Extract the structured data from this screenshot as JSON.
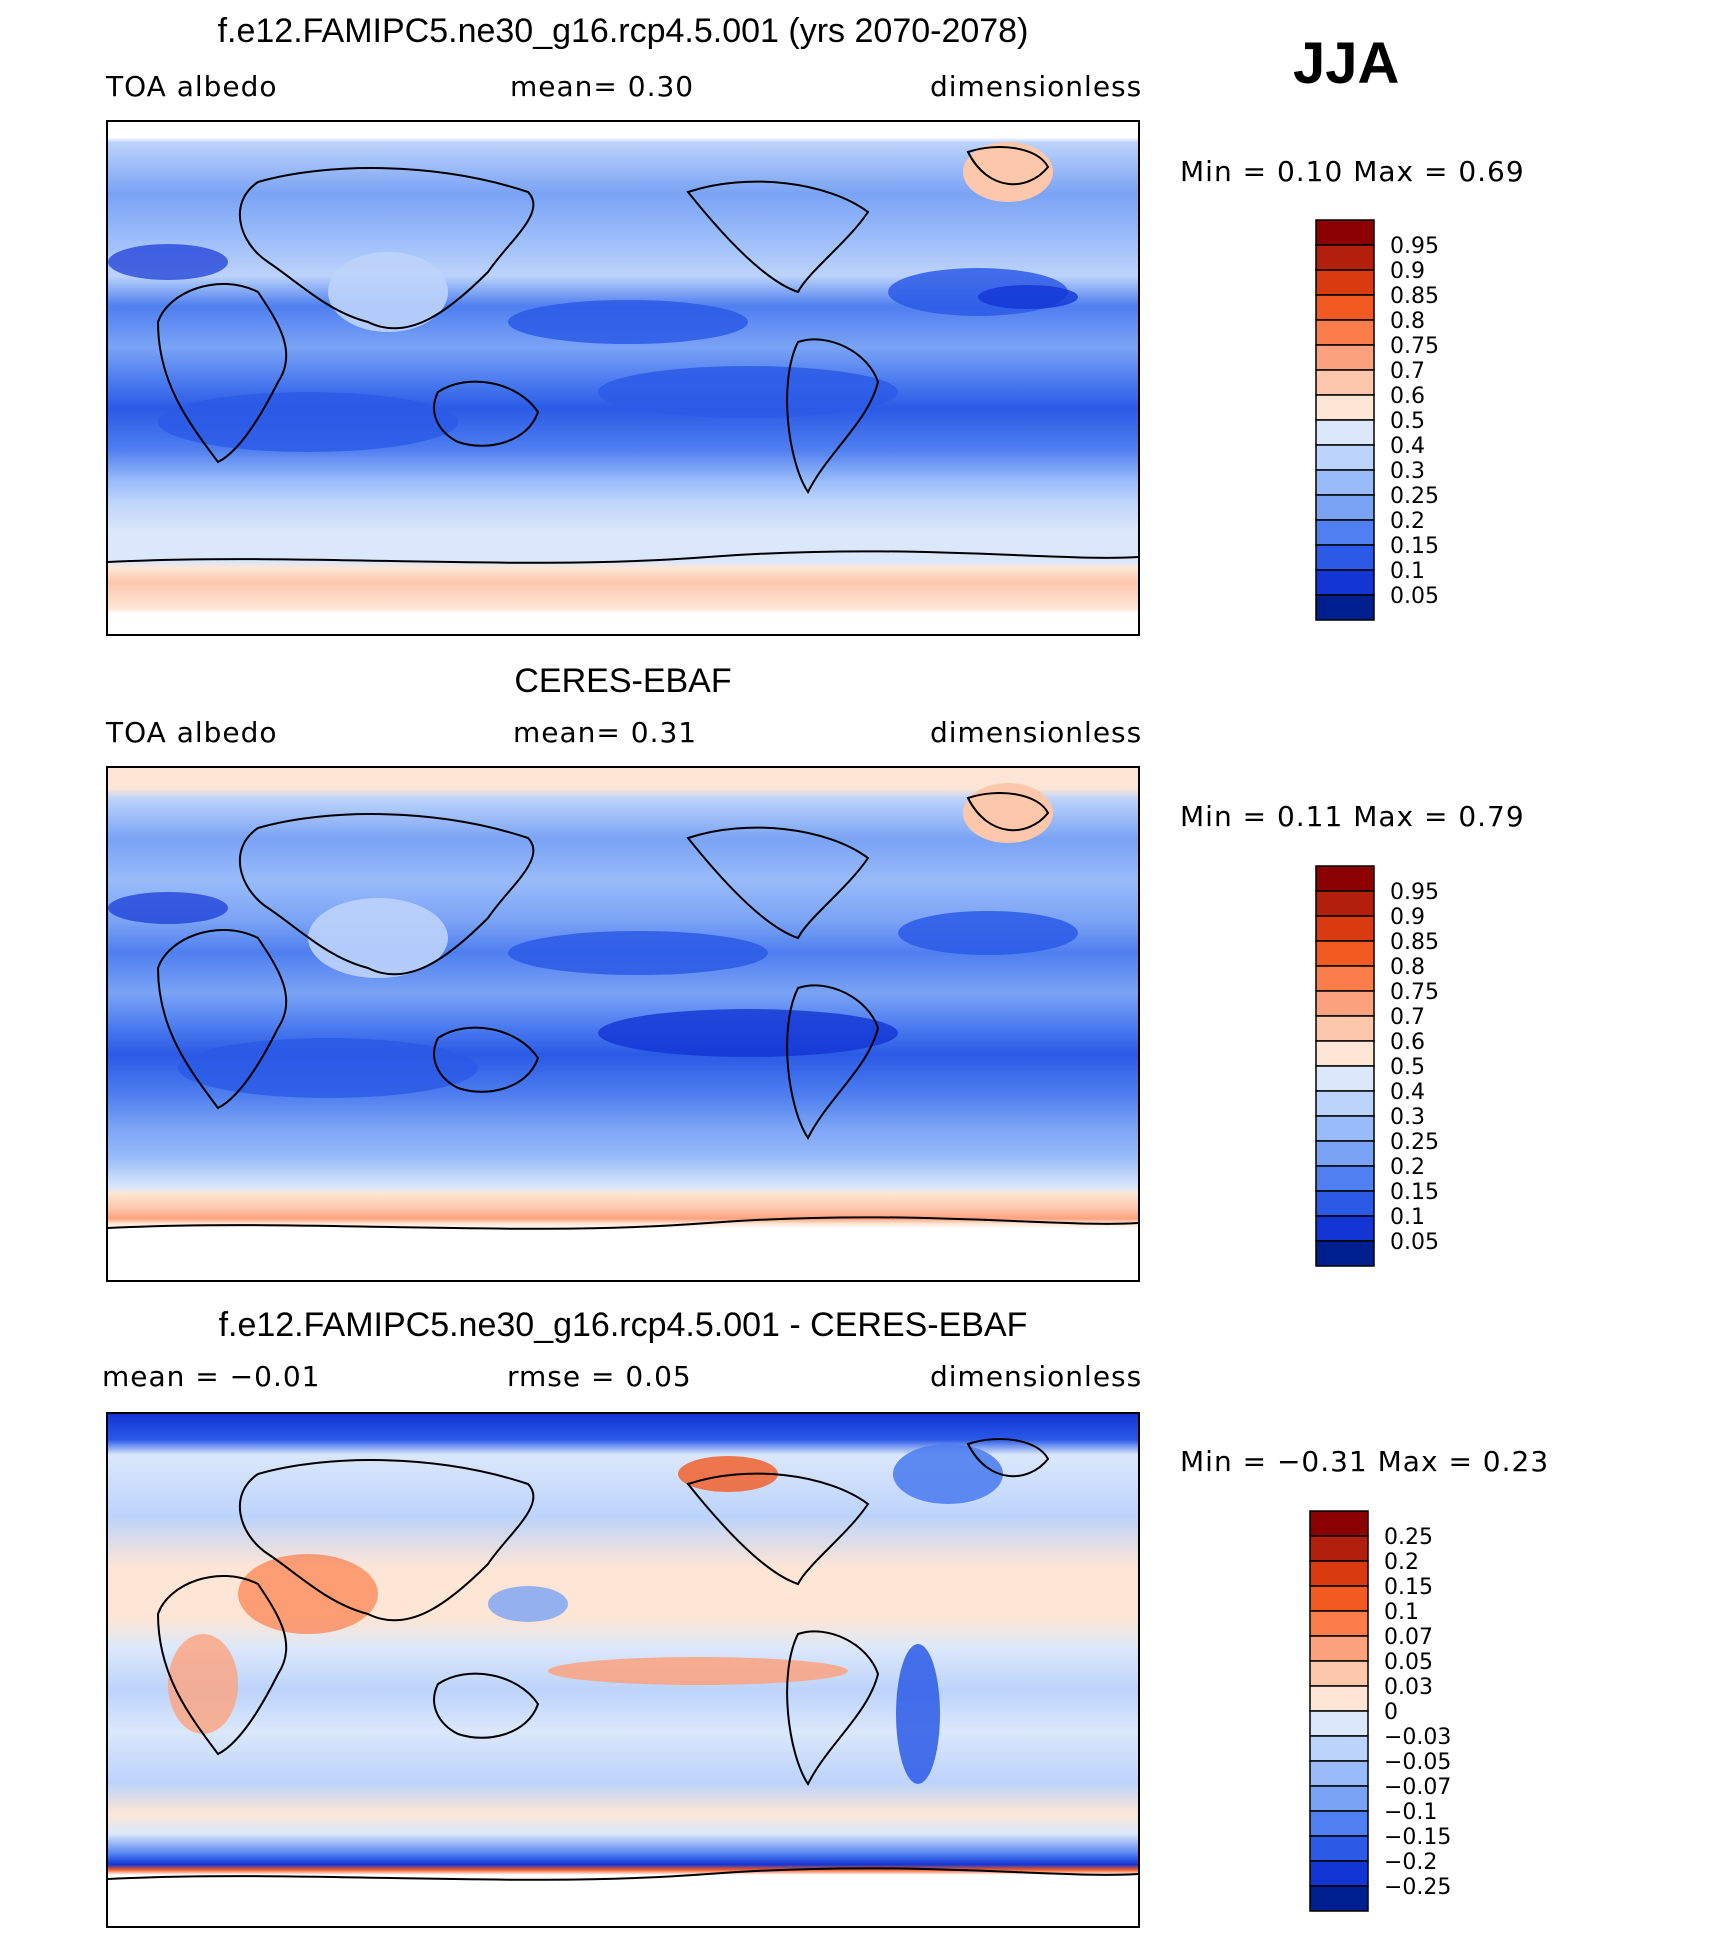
{
  "season": "JJA",
  "chart_data": [
    {
      "type": "heatmap",
      "title": "f.e12.FAMIPC5.ne30_g16.rcp4.5.001 (yrs 2070-2078)",
      "variable": "TOA albedo",
      "stat_text": "mean=     0.30",
      "units": "dimensionless",
      "minmax_text": "Min =     0.10  Max =     0.69",
      "min": 0.1,
      "max": 0.69,
      "mean": 0.3,
      "colorbar": {
        "levels": [
          "0.95",
          "0.9",
          "0.85",
          "0.8",
          "0.75",
          "0.7",
          "0.6",
          "0.5",
          "0.4",
          "0.3",
          "0.25",
          "0.2",
          "0.15",
          "0.1",
          "0.05"
        ],
        "colors": [
          "#8b0000",
          "#b2200b",
          "#d93a0f",
          "#f25a22",
          "#fb7d4a",
          "#fca27e",
          "#fdc7ac",
          "#fde6d6",
          "#dbe8fb",
          "#bcd3fb",
          "#99bbfa",
          "#7aa3f5",
          "#4f7ff0",
          "#2b5ae6",
          "#1235d4",
          "#001f8f"
        ]
      }
    },
    {
      "type": "heatmap",
      "title": "CERES-EBAF",
      "variable": "TOA albedo",
      "stat_text": "mean=     0.31",
      "units": "dimensionless",
      "minmax_text": "Min =     0.11  Max =     0.79",
      "min": 0.11,
      "max": 0.79,
      "mean": 0.31,
      "colorbar": {
        "levels": [
          "0.95",
          "0.9",
          "0.85",
          "0.8",
          "0.75",
          "0.7",
          "0.6",
          "0.5",
          "0.4",
          "0.3",
          "0.25",
          "0.2",
          "0.15",
          "0.1",
          "0.05"
        ],
        "colors": [
          "#8b0000",
          "#b2200b",
          "#d93a0f",
          "#f25a22",
          "#fb7d4a",
          "#fca27e",
          "#fdc7ac",
          "#fde6d6",
          "#dbe8fb",
          "#bcd3fb",
          "#99bbfa",
          "#7aa3f5",
          "#4f7ff0",
          "#2b5ae6",
          "#1235d4",
          "#001f8f"
        ]
      }
    },
    {
      "type": "heatmap",
      "title": "f.e12.FAMIPC5.ne30_g16.rcp4.5.001 - CERES-EBAF",
      "stat_left": "mean  =   −0.01",
      "stat_text": "rmse  =     0.05",
      "units": "dimensionless",
      "minmax_text": "Min =   −0.31  Max =     0.23",
      "min": -0.31,
      "max": 0.23,
      "mean": -0.01,
      "rmse": 0.05,
      "colorbar": {
        "levels": [
          "0.25",
          "0.2",
          "0.15",
          "0.1",
          "0.07",
          "0.05",
          "0.03",
          "0",
          "−0.03",
          "−0.05",
          "−0.07",
          "−0.1",
          "−0.15",
          "−0.2",
          "−0.25"
        ],
        "colors": [
          "#8b0000",
          "#b2200b",
          "#d93a0f",
          "#f25a22",
          "#fb7d4a",
          "#fca27e",
          "#fdc7ac",
          "#fde6d6",
          "#dbe8fb",
          "#bcd3fb",
          "#99bbfa",
          "#7aa3f5",
          "#4f7ff0",
          "#2b5ae6",
          "#1235d4",
          "#001f8f"
        ]
      }
    }
  ]
}
